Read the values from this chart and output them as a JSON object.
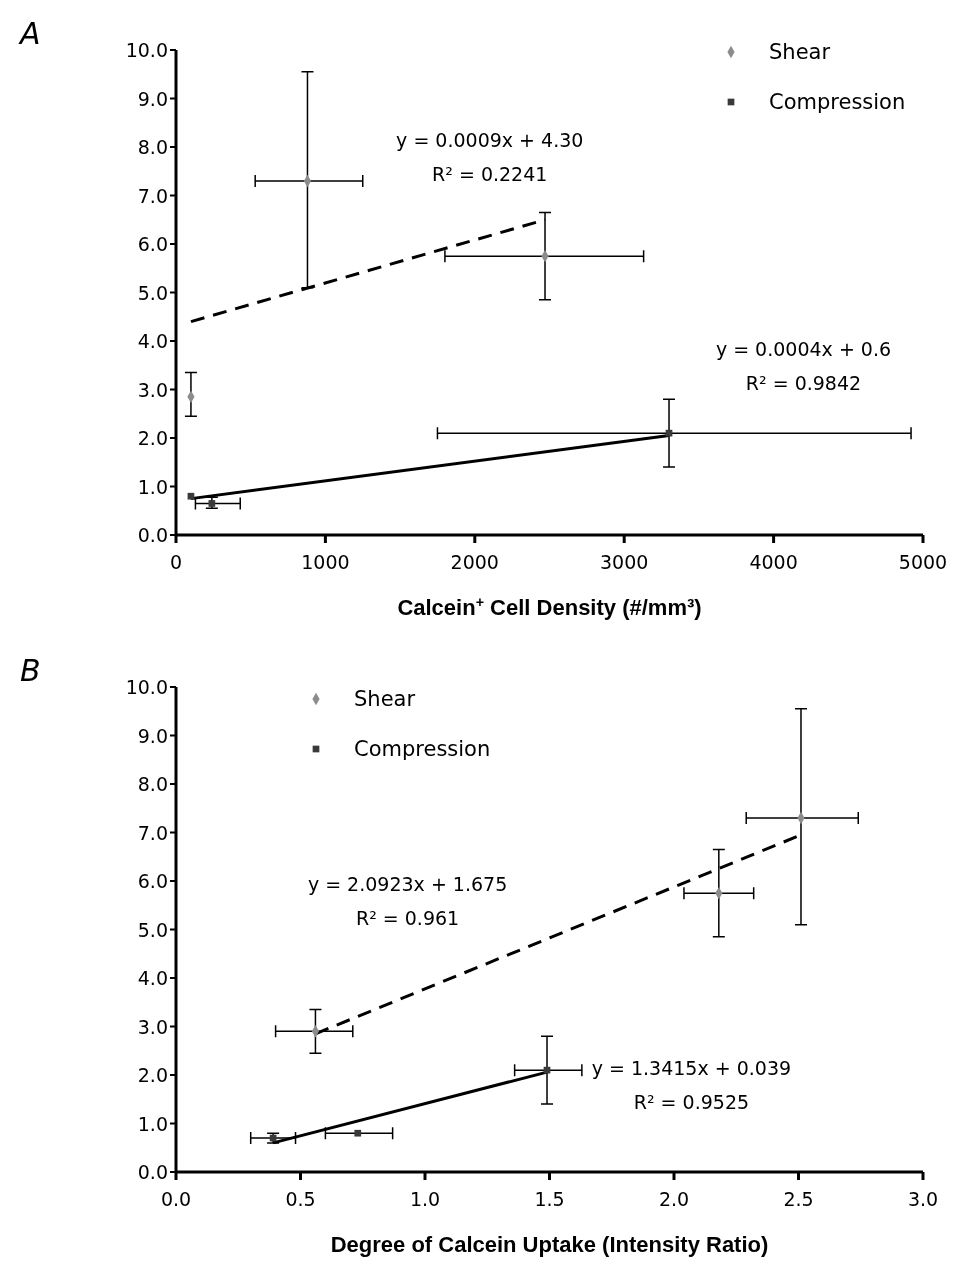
{
  "chart_data": [
    {
      "type": "scatter",
      "title": "A",
      "xlabel": "Calcein$^{+}$ Cell Density (#/mm³)",
      "xlim": [
        0,
        5000
      ],
      "xticks": [
        0,
        1000,
        2000,
        3000,
        4000,
        5000
      ],
      "ylim": [
        0,
        10
      ],
      "yticks": [
        {
          "value": 0,
          "label": "0.0"
        },
        {
          "value": 1,
          "label": "1.0"
        },
        {
          "value": 2,
          "label": "2.0"
        },
        {
          "value": 3,
          "label": "3.0"
        },
        {
          "value": 4,
          "label": "4.0"
        },
        {
          "value": 5,
          "label": "5.0"
        },
        {
          "value": 6,
          "label": "6.0"
        },
        {
          "value": 7,
          "label": "7.0"
        },
        {
          "value": 8,
          "label": "8.0"
        },
        {
          "value": 9,
          "label": "9.0"
        },
        {
          "value": 10,
          "label": "10.0"
        }
      ],
      "grid": false,
      "legend": "top right",
      "series": [
        {
          "type": "line",
          "color": "#000000",
          "line_style": "dashed",
          "marker": "none",
          "x": [
            100,
            2470
          ],
          "values": [
            4.4,
            6.5
          ]
        },
        {
          "type": "line",
          "color": "#000000",
          "line_style": "solid",
          "marker": "none",
          "x": [
            100,
            3300
          ],
          "values": [
            0.75,
            2.05
          ]
        },
        {
          "name": "Shear",
          "color": "#8c8c8c",
          "marker": "diamond",
          "x": [
            100,
            880,
            2470
          ],
          "values": [
            2.85,
            7.3,
            5.75
          ],
          "errors": [
            [
              2.45,
              3.35
            ],
            [
              5.1,
              9.55
            ],
            [
              4.85,
              6.65
            ]
          ],
          "xerrors": [
            null,
            [
              530,
              1250
            ],
            [
              1800,
              3130
            ]
          ]
        },
        {
          "name": "Compression",
          "color": "#3a3a3a",
          "marker": "square",
          "x": [
            100,
            240,
            3300
          ],
          "values": [
            0.8,
            0.65,
            2.1
          ],
          "errors": [
            null,
            [
              0.55,
              0.78
            ],
            [
              1.4,
              2.8
            ]
          ],
          "xerrors": [
            null,
            [
              130,
              430
            ],
            [
              1750,
              4920
            ]
          ]
        }
      ],
      "annotations": [
        "y = 0.0009x + 4.30",
        "R² = 0.2241",
        "y = 0.0004x + 0.6",
        "R² = 0.9842"
      ]
    },
    {
      "type": "scatter",
      "title": "B",
      "xlabel": "Degree of Calcein Uptake (Intensity Ratio)",
      "xlim": [
        0,
        3
      ],
      "xticks": [
        {
          "value": 0,
          "label": "0.0"
        },
        {
          "value": 0.5,
          "label": "0.5"
        },
        {
          "value": 1,
          "label": "1.0"
        },
        {
          "value": 1.5,
          "label": "1.5"
        },
        {
          "value": 2,
          "label": "2.0"
        },
        {
          "value": 2.5,
          "label": "2.5"
        },
        {
          "value": 3,
          "label": "3.0"
        }
      ],
      "ylim": [
        0,
        10
      ],
      "yticks": [
        {
          "value": 0,
          "label": "0.0"
        },
        {
          "value": 1,
          "label": "1.0"
        },
        {
          "value": 2,
          "label": "2.0"
        },
        {
          "value": 3,
          "label": "3.0"
        },
        {
          "value": 4,
          "label": "4.0"
        },
        {
          "value": 5,
          "label": "5.0"
        },
        {
          "value": 6,
          "label": "6.0"
        },
        {
          "value": 7,
          "label": "7.0"
        },
        {
          "value": 8,
          "label": "8.0"
        },
        {
          "value": 9,
          "label": "9.0"
        },
        {
          "value": 10,
          "label": "10.0"
        }
      ],
      "grid": false,
      "legend": "top left",
      "series": [
        {
          "type": "line",
          "color": "#000000",
          "line_style": "dashed",
          "marker": "none",
          "x": [
            0.56,
            2.51
          ],
          "values": [
            2.85,
            6.95
          ]
        },
        {
          "type": "line",
          "color": "#000000",
          "line_style": "solid",
          "marker": "none",
          "x": [
            0.39,
            1.49
          ],
          "values": [
            0.6,
            2.06
          ]
        },
        {
          "name": "Shear",
          "color": "#8c8c8c",
          "marker": "diamond",
          "x": [
            0.56,
            2.18,
            2.51
          ],
          "values": [
            2.9,
            5.75,
            7.3
          ],
          "errors": [
            [
              2.45,
              3.35
            ],
            [
              4.85,
              6.65
            ],
            [
              5.1,
              9.55
            ]
          ],
          "xerrors": [
            [
              0.4,
              0.71
            ],
            [
              2.04,
              2.32
            ],
            [
              2.29,
              2.74
            ]
          ]
        },
        {
          "name": "Compression",
          "color": "#3a3a3a",
          "marker": "square",
          "x": [
            0.39,
            0.73,
            1.49
          ],
          "values": [
            0.7,
            0.8,
            2.1
          ],
          "errors": [
            [
              0.6,
              0.8
            ],
            null,
            [
              1.4,
              2.8
            ]
          ],
          "xerrors": [
            [
              0.3,
              0.48
            ],
            [
              0.6,
              0.87
            ],
            [
              1.36,
              1.63
            ]
          ]
        }
      ],
      "annotations": [
        "y = 2.0923x + 1.675",
        "R² = 0.961",
        "y = 1.3415x + 0.039",
        "R² = 0.9525"
      ]
    }
  ]
}
